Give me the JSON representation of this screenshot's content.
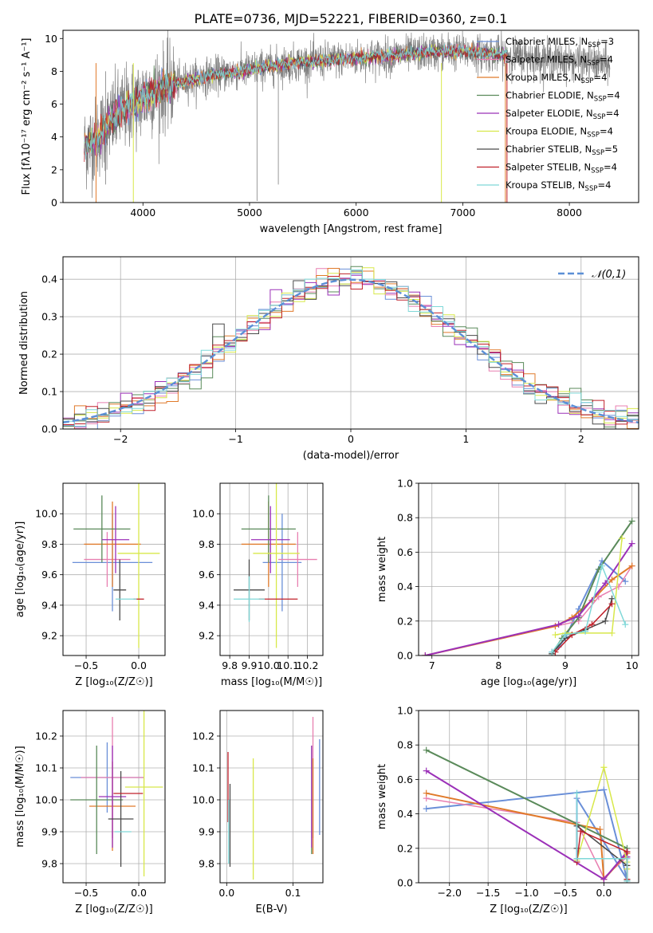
{
  "title": "PLATE=0736, MJD=52221, FIBERID=0360, z=0.1",
  "colors": {
    "miles_chabrier": "#6a8fd8",
    "miles_salpeter": "#e87fb0",
    "miles_kroupa": "#e07a2a",
    "elodie_chabrier": "#5a8a5a",
    "elodie_salpeter": "#9b30b8",
    "elodie_kroupa": "#d8e84a",
    "stelib_chabrier": "#4a4a4a",
    "stelib_salpeter": "#c0202a",
    "stelib_kroupa": "#7fd8d8",
    "data": "#808080",
    "gaussian": "#5b8fd6"
  },
  "chart_data": [
    {
      "id": "spectrum",
      "type": "line",
      "xlabel": "wavelength [Angstrom, rest frame]",
      "ylabel": "Flux [fλ10⁻¹⁷ erg cm⁻² s⁻¹ A⁻¹]",
      "xlim": [
        3250,
        8650
      ],
      "ylim": [
        0,
        10.5
      ],
      "xticks": [
        4000,
        5000,
        6000,
        7000,
        8000
      ],
      "yticks": [
        0,
        2,
        4,
        6,
        8,
        10
      ],
      "grid": false,
      "legend_position": "top-right",
      "legend": [
        "Chabrier MILES, N_SSP=3",
        "Salpeter MILES, N_SSP=4",
        "Kroupa MILES, N_SSP=4",
        "Chabrier ELODIE, N_SSP=4",
        "Salpeter ELODIE, N_SSP=4",
        "Kroupa ELODIE, N_SSP=4",
        "Chabrier STELIB, N_SSP=5",
        "Salpeter STELIB, N_SSP=4",
        "Kroupa STELIB, N_SSP=4"
      ],
      "continuum": {
        "x": [
          3450,
          3550,
          3650,
          3750,
          3850,
          3950,
          4050,
          4200,
          4400,
          4600,
          4800,
          5000,
          5200,
          5400,
          5600,
          5800,
          6000,
          6200,
          6400,
          6600,
          6800,
          7000,
          7200,
          7400
        ],
        "y": [
          3.4,
          3.8,
          4.6,
          5.3,
          5.8,
          6.1,
          6.6,
          7.0,
          7.4,
          7.7,
          7.9,
          8.1,
          8.3,
          8.5,
          8.6,
          8.7,
          8.8,
          8.9,
          9.0,
          9.1,
          9.2,
          9.2,
          9.1,
          9.0
        ]
      },
      "data_extent": [
        3450,
        8380
      ],
      "model_extent": [
        3450,
        7420
      ]
    },
    {
      "id": "residuals",
      "type": "step",
      "xlabel": "(data-model)/error",
      "ylabel": "Normed distribution",
      "xlim": [
        -2.5,
        2.5
      ],
      "ylim": [
        0,
        0.46
      ],
      "xticks": [
        -2,
        -1,
        0,
        1,
        2
      ],
      "yticks": [
        0.0,
        0.1,
        0.2,
        0.3,
        0.4
      ],
      "grid": true,
      "legend": [
        "𝒩(0,1)"
      ],
      "legend_position": "top-right",
      "bin_width": 0.1
    },
    {
      "id": "age_vs_z",
      "type": "errorbar",
      "xlabel": "Z [log₁₀(Z/Z☉)]",
      "ylabel": "age  [log₁₀(age/yr)]",
      "xlim": [
        -0.72,
        0.25
      ],
      "ylim": [
        9.07,
        10.2
      ],
      "xticks": [
        -0.5,
        0.0
      ],
      "yticks": [
        9.2,
        9.4,
        9.6,
        9.8,
        10.0
      ],
      "grid": true,
      "points": [
        {
          "key": "miles_chabrier",
          "x": -0.25,
          "y": 9.68,
          "xerr": 0.38,
          "yerr": 0.32
        },
        {
          "key": "miles_salpeter",
          "x": -0.3,
          "y": 9.7,
          "xerr": 0.22,
          "yerr": 0.18
        },
        {
          "key": "miles_kroupa",
          "x": -0.25,
          "y": 9.8,
          "xerr": 0.27,
          "yerr": 0.28
        },
        {
          "key": "elodie_chabrier",
          "x": -0.35,
          "y": 9.9,
          "xerr": 0.27,
          "yerr": 0.22
        },
        {
          "key": "elodie_salpeter",
          "x": -0.22,
          "y": 9.83,
          "xerr": 0.13,
          "yerr": 0.22
        },
        {
          "key": "elodie_kroupa",
          "x": 0.0,
          "y": 9.74,
          "xerr": 0.2,
          "yerr": 0.62
        },
        {
          "key": "stelib_chabrier",
          "x": -0.18,
          "y": 9.5,
          "xerr": 0.06,
          "yerr": 0.2
        },
        {
          "key": "stelib_salpeter",
          "x": 0.0,
          "y": 9.44,
          "xerr": 0.05,
          "yerr": 0.0
        },
        {
          "key": "stelib_kroupa",
          "x": -0.12,
          "y": 9.44,
          "xerr": 0.1,
          "yerr": 0.0
        }
      ]
    },
    {
      "id": "age_vs_mass",
      "type": "errorbar",
      "xlabel": "mass [log₁₀(M/M☉)]",
      "ylabel": "",
      "xlim": [
        9.75,
        10.28
      ],
      "ylim": [
        9.07,
        10.2
      ],
      "xticks": [
        9.8,
        9.9,
        10.0,
        10.1,
        10.2
      ],
      "yticks": [
        9.2,
        9.4,
        9.6,
        9.8,
        10.0
      ],
      "grid": true,
      "points": [
        {
          "key": "miles_chabrier",
          "x": 10.07,
          "y": 9.68,
          "xerr": 0.1,
          "yerr": 0.32
        },
        {
          "key": "miles_salpeter",
          "x": 10.15,
          "y": 9.7,
          "xerr": 0.1,
          "yerr": 0.18
        },
        {
          "key": "miles_kroupa",
          "x": 10.0,
          "y": 9.8,
          "xerr": 0.14,
          "yerr": 0.28
        },
        {
          "key": "elodie_chabrier",
          "x": 10.0,
          "y": 9.9,
          "xerr": 0.14,
          "yerr": 0.22
        },
        {
          "key": "elodie_salpeter",
          "x": 10.01,
          "y": 9.83,
          "xerr": 0.1,
          "yerr": 0.22
        },
        {
          "key": "elodie_kroupa",
          "x": 10.04,
          "y": 9.74,
          "xerr": 0.12,
          "yerr": 0.62
        },
        {
          "key": "stelib_chabrier",
          "x": 9.9,
          "y": 9.5,
          "xerr": 0.08,
          "yerr": 0.2
        },
        {
          "key": "stelib_salpeter",
          "x": 10.05,
          "y": 9.44,
          "xerr": 0.1,
          "yerr": 0.0
        },
        {
          "key": "stelib_kroupa",
          "x": 9.9,
          "y": 9.44,
          "xerr": 0.08,
          "yerr": 0.15
        }
      ]
    },
    {
      "id": "weight_vs_age",
      "type": "line",
      "xlabel": "age  [log₁₀(age/yr)]",
      "ylabel": "mass weight",
      "xlim": [
        6.8,
        10.1
      ],
      "ylim": [
        0,
        1.0
      ],
      "xticks": [
        7,
        8,
        9,
        10
      ],
      "yticks": [
        0.0,
        0.2,
        0.4,
        0.6,
        0.8,
        1.0
      ],
      "grid": true,
      "series": [
        {
          "key": "miles_chabrier",
          "x": [
            8.8,
            8.9,
            9.0,
            9.2,
            9.55,
            9.9
          ],
          "y": [
            0.02,
            0.05,
            0.1,
            0.27,
            0.55,
            0.43
          ]
        },
        {
          "key": "miles_salpeter",
          "x": [
            6.9,
            8.85,
            9.2,
            9.5,
            9.8,
            10.0
          ],
          "y": [
            0.0,
            0.17,
            0.2,
            0.34,
            0.4,
            0.52
          ]
        },
        {
          "key": "miles_kroupa",
          "x": [
            6.9,
            8.85,
            9.1,
            9.4,
            9.7,
            10.0
          ],
          "y": [
            0.0,
            0.17,
            0.22,
            0.32,
            0.44,
            0.52
          ]
        },
        {
          "key": "elodie_chabrier",
          "x": [
            8.8,
            8.95,
            9.2,
            9.5,
            10.0
          ],
          "y": [
            0.01,
            0.1,
            0.22,
            0.5,
            0.78
          ]
        },
        {
          "key": "elodie_salpeter",
          "x": [
            6.9,
            8.9,
            9.2,
            9.6,
            10.0
          ],
          "y": [
            0.0,
            0.18,
            0.23,
            0.42,
            0.65
          ]
        },
        {
          "key": "elodie_kroupa",
          "x": [
            8.85,
            9.0,
            9.7,
            9.85
          ],
          "y": [
            0.12,
            0.13,
            0.13,
            0.68
          ]
        },
        {
          "key": "stelib_chabrier",
          "x": [
            8.8,
            9.0,
            9.3,
            9.6,
            9.7
          ],
          "y": [
            0.01,
            0.1,
            0.15,
            0.2,
            0.33
          ]
        },
        {
          "key": "stelib_salpeter",
          "x": [
            8.85,
            9.1,
            9.4,
            9.7
          ],
          "y": [
            0.02,
            0.12,
            0.18,
            0.3
          ]
        },
        {
          "key": "stelib_kroupa",
          "x": [
            8.8,
            9.0,
            9.3,
            9.55,
            9.9
          ],
          "y": [
            0.02,
            0.12,
            0.14,
            0.52,
            0.18
          ]
        }
      ]
    },
    {
      "id": "mass_vs_z",
      "type": "errorbar",
      "xlabel": "Z [log₁₀(Z/Z☉)]",
      "ylabel": "mass [log₁₀(M/M☉)]",
      "xlim": [
        -0.72,
        0.25
      ],
      "ylim": [
        9.74,
        10.28
      ],
      "xticks": [
        -0.5,
        0.0
      ],
      "yticks": [
        9.8,
        9.9,
        10.0,
        10.1,
        10.2
      ],
      "grid": true,
      "points": [
        {
          "key": "miles_chabrier",
          "x": -0.3,
          "y": 10.07,
          "xerr": 0.35,
          "yerr": 0.11
        },
        {
          "key": "miles_salpeter",
          "x": -0.25,
          "y": 10.07,
          "xerr": 0.3,
          "yerr": 0.19
        },
        {
          "key": "miles_kroupa",
          "x": -0.25,
          "y": 9.98,
          "xerr": 0.22,
          "yerr": 0.14
        },
        {
          "key": "elodie_chabrier",
          "x": -0.4,
          "y": 10.0,
          "xerr": 0.25,
          "yerr": 0.17
        },
        {
          "key": "elodie_salpeter",
          "x": -0.25,
          "y": 10.01,
          "xerr": 0.13,
          "yerr": 0.16
        },
        {
          "key": "elodie_kroupa",
          "x": 0.05,
          "y": 10.04,
          "xerr": 0.18,
          "yerr": 0.28
        },
        {
          "key": "stelib_chabrier",
          "x": -0.17,
          "y": 9.94,
          "xerr": 0.12,
          "yerr": 0.15
        },
        {
          "key": "stelib_salpeter",
          "x": -0.1,
          "y": 10.02,
          "xerr": 0.14,
          "yerr": 0.0
        },
        {
          "key": "stelib_kroupa",
          "x": -0.15,
          "y": 9.9,
          "xerr": 0.08,
          "yerr": 0.0
        }
      ]
    },
    {
      "id": "mass_vs_ebv",
      "type": "errorbar",
      "xlabel": "E(B-V)",
      "ylabel": "",
      "xlim": [
        -0.01,
        0.145
      ],
      "ylim": [
        9.74,
        10.28
      ],
      "xticks": [
        0.0,
        0.1
      ],
      "yticks": [
        9.8,
        9.9,
        10.0,
        10.1,
        10.2
      ],
      "grid": true,
      "points": [
        {
          "key": "miles_chabrier",
          "x": 0.14,
          "y": 10.04,
          "xerr": 0.0,
          "yerr": 0.15
        },
        {
          "key": "miles_salpeter",
          "x": 0.13,
          "y": 10.07,
          "xerr": 0.0,
          "yerr": 0.19
        },
        {
          "key": "miles_kroupa",
          "x": 0.13,
          "y": 9.98,
          "xerr": 0.0,
          "yerr": 0.15
        },
        {
          "key": "elodie_chabrier",
          "x": 0.128,
          "y": 10.0,
          "xerr": 0.0,
          "yerr": 0.17
        },
        {
          "key": "elodie_salpeter",
          "x": 0.128,
          "y": 10.01,
          "xerr": 0.0,
          "yerr": 0.16
        },
        {
          "key": "elodie_kroupa",
          "x": 0.04,
          "y": 9.94,
          "xerr": 0.0,
          "yerr": 0.19
        },
        {
          "key": "stelib_chabrier",
          "x": 0.005,
          "y": 9.92,
          "xerr": 0.0,
          "yerr": 0.13
        },
        {
          "key": "stelib_salpeter",
          "x": 0.002,
          "y": 10.04,
          "xerr": 0.0,
          "yerr": 0.11
        },
        {
          "key": "stelib_kroupa",
          "x": 0.003,
          "y": 9.9,
          "xerr": 0.0,
          "yerr": 0.1
        }
      ]
    },
    {
      "id": "weight_vs_z",
      "type": "line",
      "xlabel": "Z [log₁₀(Z/Z☉)]",
      "ylabel": "mass weight",
      "xlim": [
        -2.4,
        0.45
      ],
      "ylim": [
        0,
        1.0
      ],
      "xticks": [
        -2.0,
        -1.5,
        -1.0,
        -0.5,
        0.0
      ],
      "yticks": [
        0.0,
        0.2,
        0.4,
        0.6,
        0.8,
        1.0
      ],
      "grid": true,
      "series": [
        {
          "key": "miles_chabrier",
          "x": [
            -2.3,
            0.0,
            0.3,
            -0.35,
            -0.35
          ],
          "y": [
            0.43,
            0.54,
            0.02,
            0.49,
            0.14
          ]
        },
        {
          "key": "miles_salpeter",
          "x": [
            -2.3,
            -0.35,
            0.0,
            0.3
          ],
          "y": [
            0.49,
            0.35,
            0.03,
            0.15
          ]
        },
        {
          "key": "miles_kroupa",
          "x": [
            -2.3,
            -0.05,
            0.0,
            0.3
          ],
          "y": [
            0.52,
            0.31,
            0.02,
            0.17
          ]
        },
        {
          "key": "elodie_chabrier",
          "x": [
            -2.3,
            0.3,
            0.3
          ],
          "y": [
            0.77,
            0.2,
            0.02
          ]
        },
        {
          "key": "elodie_salpeter",
          "x": [
            -2.3,
            0.0,
            0.3,
            0.3
          ],
          "y": [
            0.65,
            0.02,
            0.18,
            0.15
          ]
        },
        {
          "key": "elodie_kroupa",
          "x": [
            -0.35,
            0.0,
            0.3,
            0.3
          ],
          "y": [
            0.13,
            0.67,
            0.12,
            0.08
          ]
        },
        {
          "key": "stelib_chabrier",
          "x": [
            -0.35,
            -0.35,
            0.3,
            0.3
          ],
          "y": [
            0.2,
            0.33,
            0.1,
            0.01
          ]
        },
        {
          "key": "stelib_salpeter",
          "x": [
            -0.35,
            -0.3,
            0.3,
            0.3
          ],
          "y": [
            0.12,
            0.3,
            0.18,
            0.02
          ]
        },
        {
          "key": "stelib_kroupa",
          "x": [
            -0.35,
            -0.35,
            0.3,
            0.3
          ],
          "y": [
            0.52,
            0.14,
            0.14,
            0.01
          ]
        }
      ]
    }
  ]
}
